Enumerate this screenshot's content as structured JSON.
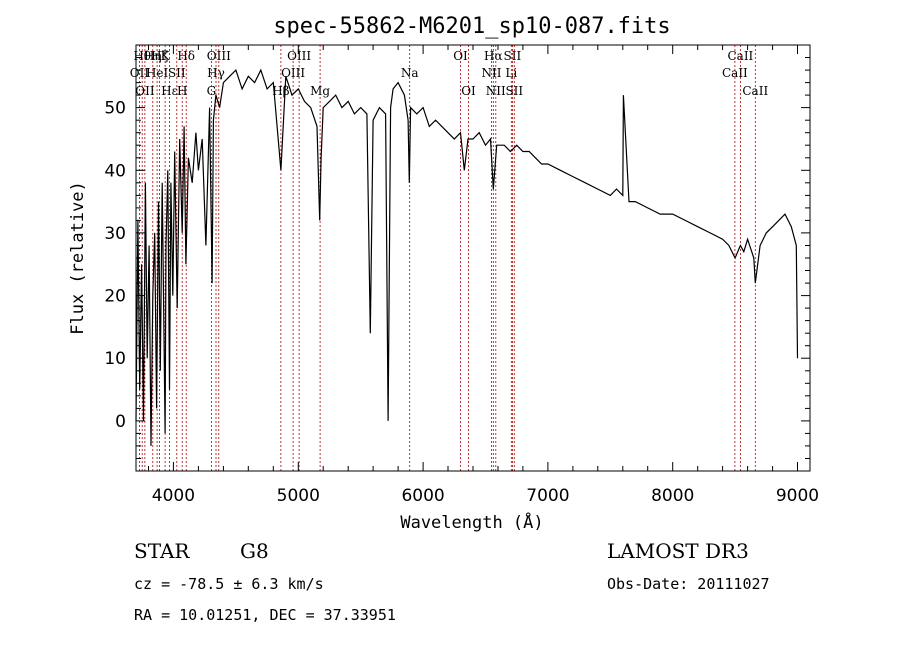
{
  "chart_data": {
    "type": "line",
    "title": "spec-55862-M6201_sp10-087.fits",
    "xlabel": "Wavelength (Å)",
    "ylabel": "Flux (relative)",
    "xlim": [
      3700,
      9100
    ],
    "ylim": [
      -8,
      60
    ],
    "xticks": [
      4000,
      5000,
      6000,
      7000,
      8000,
      9000
    ],
    "yticks": [
      0,
      10,
      20,
      30,
      40,
      50
    ],
    "series": [
      {
        "name": "spectrum",
        "x": [
          3700,
          3715,
          3730,
          3745,
          3760,
          3775,
          3790,
          3805,
          3820,
          3835,
          3850,
          3865,
          3880,
          3895,
          3910,
          3925,
          3933,
          3940,
          3955,
          3968,
          3980,
          3995,
          4010,
          4030,
          4050,
          4070,
          4085,
          4100,
          4120,
          4150,
          4180,
          4200,
          4230,
          4260,
          4290,
          4310,
          4320,
          4340,
          4370,
          4400,
          4450,
          4500,
          4550,
          4600,
          4650,
          4700,
          4750,
          4800,
          4861,
          4900,
          4950,
          5000,
          5050,
          5100,
          5150,
          5172,
          5183,
          5200,
          5250,
          5300,
          5350,
          5400,
          5450,
          5500,
          5550,
          5577,
          5600,
          5650,
          5700,
          5720,
          5740,
          5760,
          5800,
          5850,
          5880,
          5890,
          5900,
          5950,
          6000,
          6050,
          6100,
          6150,
          6200,
          6250,
          6300,
          6330,
          6360,
          6400,
          6450,
          6500,
          6540,
          6563,
          6590,
          6650,
          6700,
          6750,
          6800,
          6850,
          6900,
          6950,
          7000,
          7100,
          7200,
          7300,
          7400,
          7500,
          7550,
          7600,
          7605,
          7650,
          7700,
          7800,
          7900,
          8000,
          8100,
          8200,
          8300,
          8400,
          8450,
          8500,
          8542,
          8570,
          8600,
          8650,
          8662,
          8700,
          8750,
          8800,
          8850,
          8900,
          8950,
          8990,
          9000
        ],
        "values": [
          0,
          32,
          5,
          25,
          0,
          38,
          10,
          28,
          -4,
          20,
          30,
          2,
          35,
          8,
          38,
          12,
          -2,
          28,
          40,
          5,
          38,
          20,
          43,
          18,
          45,
          30,
          47,
          25,
          42,
          38,
          46,
          40,
          45,
          28,
          50,
          22,
          48,
          52,
          50,
          54,
          55,
          56,
          53,
          55,
          54,
          56,
          53,
          54,
          40,
          55,
          52,
          53,
          51,
          50,
          47,
          32,
          42,
          50,
          51,
          52,
          50,
          51,
          49,
          50,
          49,
          14,
          48,
          50,
          49,
          0,
          50,
          53,
          54,
          52,
          48,
          38,
          50,
          49,
          50,
          47,
          48,
          47,
          46,
          45,
          46,
          40,
          45,
          45,
          46,
          44,
          45,
          37,
          44,
          44,
          43,
          44,
          43,
          43,
          42,
          41,
          41,
          40,
          39,
          38,
          37,
          36,
          37,
          36,
          52,
          35,
          35,
          34,
          33,
          33,
          32,
          31,
          30,
          29,
          28,
          26,
          28,
          27,
          29,
          26,
          22,
          28,
          30,
          31,
          32,
          33,
          31,
          28,
          10
        ]
      }
    ],
    "lines": [
      {
        "w": 3727,
        "label": "OII",
        "row": 2
      },
      {
        "w": 3750,
        "label": "Hθ",
        "row": 1
      },
      {
        "w": 3771,
        "label": "OII",
        "row": 3
      },
      {
        "w": 3835,
        "label": "Hη",
        "row": 1
      },
      {
        "w": 3869,
        "label": "HeI",
        "row": 2
      },
      {
        "w": 3889,
        "label": "Hζ",
        "row": 1
      },
      {
        "w": 3933,
        "label": "K",
        "row": 1
      },
      {
        "w": 3968,
        "label": "Hε",
        "row": 3
      },
      {
        "w": 4027,
        "label": "SII",
        "row": 2
      },
      {
        "w": 4070,
        "label": "H",
        "row": 3
      },
      {
        "w": 4102,
        "label": "Hδ",
        "row": 1
      },
      {
        "w": 4304,
        "label": "G",
        "row": 3
      },
      {
        "w": 4341,
        "label": "Hγ",
        "row": 2
      },
      {
        "w": 4363,
        "label": "OIII",
        "row": 1
      },
      {
        "w": 4861,
        "label": "Hβ",
        "row": 3
      },
      {
        "w": 4959,
        "label": "OIII",
        "row": 2
      },
      {
        "w": 5007,
        "label": "OIII",
        "row": 1
      },
      {
        "w": 5175,
        "label": "Mg",
        "row": 3
      },
      {
        "w": 5893,
        "label": "Na",
        "row": 2
      },
      {
        "w": 6300,
        "label": "OI",
        "row": 1
      },
      {
        "w": 6364,
        "label": "OI",
        "row": 3
      },
      {
        "w": 6548,
        "label": "NII",
        "row": 2
      },
      {
        "w": 6563,
        "label": "Hα",
        "row": 1
      },
      {
        "w": 6583,
        "label": "NII",
        "row": 3
      },
      {
        "w": 6707,
        "label": "Li",
        "row": 2
      },
      {
        "w": 6716,
        "label": "SII",
        "row": 1
      },
      {
        "w": 6731,
        "label": "SII",
        "row": 3
      },
      {
        "w": 8498,
        "label": "CaII",
        "row": 2
      },
      {
        "w": 8542,
        "label": "CaII",
        "row": 1
      },
      {
        "w": 8662,
        "label": "CaII",
        "row": 3
      }
    ]
  },
  "info": {
    "class": "STAR",
    "subclass": "G8",
    "survey": "LAMOST DR3",
    "redshift": "cz = -78.5 ± 6.3 km/s",
    "obs_date": "Obs-Date: 20111027",
    "coords": "RA =  10.01251, DEC =  37.33951"
  },
  "colors": {
    "spectrum": "#000000",
    "line_marker": "#b00000"
  }
}
